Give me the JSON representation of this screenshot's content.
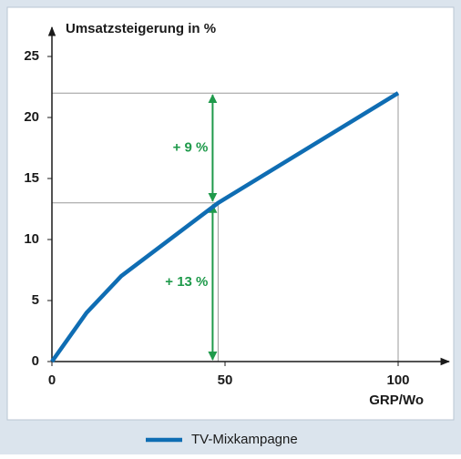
{
  "chart_data": {
    "type": "line",
    "y_label": "Umsatzsteigerung in %",
    "x_label": "GRP/Wo",
    "x": [
      0,
      10,
      20,
      48,
      100
    ],
    "series": [
      {
        "name": "TV-Mixkampagne",
        "color": "#0f6db3",
        "values": [
          0,
          4,
          7,
          13,
          22
        ]
      }
    ],
    "xlim": [
      0,
      110
    ],
    "ylim": [
      0,
      25
    ],
    "xticks": [
      0,
      50,
      100
    ],
    "yticks": [
      0,
      5,
      10,
      15,
      20,
      25
    ],
    "reference_points": [
      {
        "x": 48,
        "y": 13
      },
      {
        "x": 100,
        "y": 22
      }
    ],
    "annotations": [
      {
        "text": "+ 13 %",
        "y0": 0,
        "y1": 13,
        "color": "#1f9a4b"
      },
      {
        "text": "+ 9 %",
        "y0": 13,
        "y1": 22,
        "color": "#1f9a4b"
      }
    ],
    "legend": "bottom"
  }
}
